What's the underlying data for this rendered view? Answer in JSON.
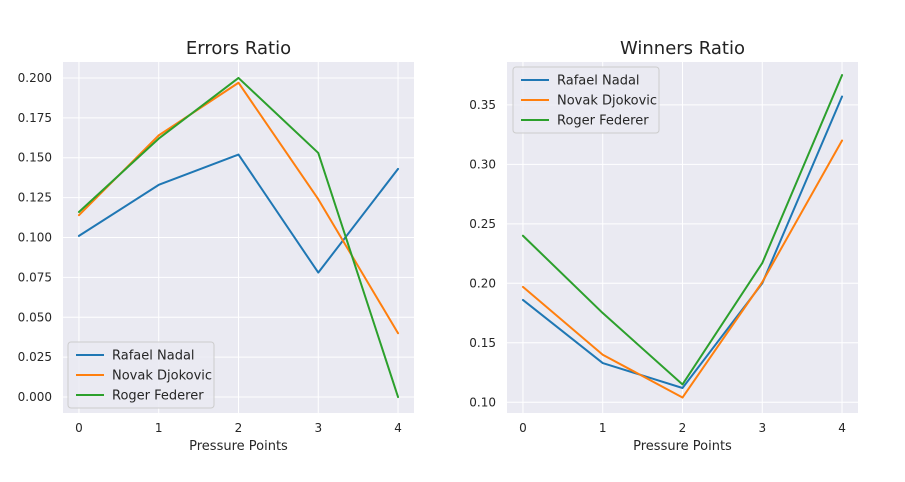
{
  "chart_data": [
    {
      "type": "line",
      "title": "Errors Ratio",
      "xlabel": "Pressure Points",
      "ylabel": "",
      "x": [
        0,
        1,
        2,
        3,
        4
      ],
      "xticks": [
        "0",
        "1",
        "2",
        "3",
        "4"
      ],
      "yticks": [
        "0.000",
        "0.025",
        "0.050",
        "0.075",
        "0.100",
        "0.125",
        "0.150",
        "0.175",
        "0.200"
      ],
      "xlim": [
        -0.2,
        4.2
      ],
      "ylim": [
        -0.01,
        0.21
      ],
      "grid": true,
      "legend_position": "lower-left",
      "series": [
        {
          "name": "Rafael Nadal",
          "color": "#1f77b4",
          "values": [
            0.101,
            0.133,
            0.152,
            0.078,
            0.143
          ]
        },
        {
          "name": "Novak Djokovic",
          "color": "#ff7f0e",
          "values": [
            0.114,
            0.164,
            0.197,
            0.124,
            0.04
          ]
        },
        {
          "name": "Roger Federer",
          "color": "#2ca02c",
          "values": [
            0.116,
            0.162,
            0.2,
            0.153,
            0.0
          ]
        }
      ]
    },
    {
      "type": "line",
      "title": "Winners Ratio",
      "xlabel": "Pressure Points",
      "ylabel": "",
      "x": [
        0,
        1,
        2,
        3,
        4
      ],
      "xticks": [
        "0",
        "1",
        "2",
        "3",
        "4"
      ],
      "yticks": [
        "0.10",
        "0.15",
        "0.20",
        "0.25",
        "0.30",
        "0.35"
      ],
      "xlim": [
        -0.2,
        4.2
      ],
      "ylim": [
        0.091,
        0.386
      ],
      "grid": true,
      "legend_position": "upper-left",
      "series": [
        {
          "name": "Rafael Nadal",
          "color": "#1f77b4",
          "values": [
            0.186,
            0.133,
            0.112,
            0.2,
            0.357
          ]
        },
        {
          "name": "Novak Djokovic",
          "color": "#ff7f0e",
          "values": [
            0.197,
            0.14,
            0.104,
            0.201,
            0.32
          ]
        },
        {
          "name": "Roger Federer",
          "color": "#2ca02c",
          "values": [
            0.24,
            0.175,
            0.115,
            0.217,
            0.375
          ]
        }
      ]
    }
  ]
}
